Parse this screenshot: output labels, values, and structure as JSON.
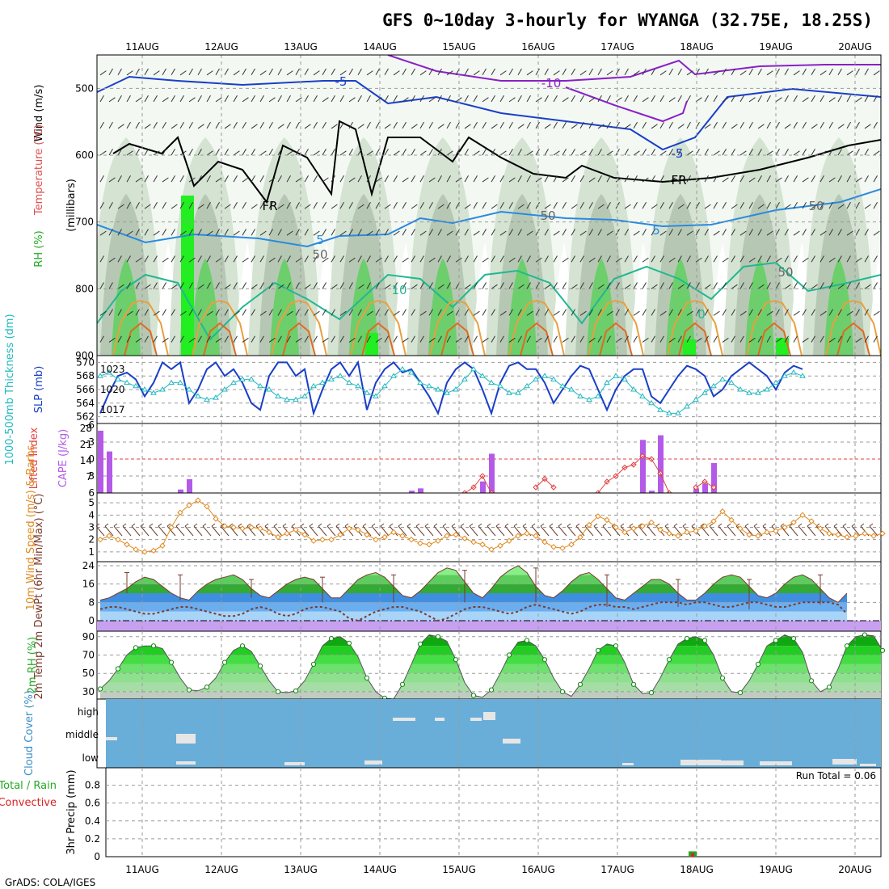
{
  "title": "GFS 0~10day 3-hourly for WYANGA (32.75E, 18.25S)",
  "credit": "GrADS: COLA/IGES",
  "chart_data": [
    {
      "panel": "upper-air",
      "type": "heatmap",
      "dates": [
        "11AUG",
        "12AUG",
        "13AUG",
        "14AUG",
        "15AUG",
        "16AUG",
        "17AUG",
        "18AUG",
        "19AUG",
        "20AUG"
      ],
      "y_label": "(millibars)",
      "y_ticks": [
        500,
        600,
        700,
        800,
        900
      ],
      "ylim": [
        900,
        450
      ],
      "legend": [
        {
          "text": "Wind (m/s)",
          "color": "#000000"
        },
        {
          "text": "Temperature (°C)",
          "color": "#e05050"
        },
        {
          "text": "RH (%)",
          "color": "#22aa22"
        }
      ],
      "contour_labels": [
        "-5",
        "-10",
        "-5",
        "-5",
        "5",
        "5",
        "10",
        "0",
        "0",
        "FR",
        "FR",
        "50",
        "50",
        "50",
        "50"
      ]
    },
    {
      "panel": "slp-thickness",
      "type": "line",
      "y_label_left": "1000-500mb Thickness (dm)",
      "y_label_right": "SLP (mb)",
      "left_ticks": [
        562,
        564,
        566,
        568,
        570
      ],
      "right_ticks": [
        1017,
        1020,
        1023
      ],
      "series": [
        {
          "name": "SLP (mb)",
          "color": "#1a3fc8",
          "values": [
            1016.5,
            1019.5,
            1022,
            1022.5,
            1021.5,
            1019,
            1021,
            1024,
            1023,
            1024,
            1018,
            1020,
            1023,
            1024,
            1022,
            1023,
            1021,
            1018,
            1017,
            1022,
            1024,
            1024,
            1022,
            1023,
            1016.5,
            1020,
            1023,
            1024,
            1022,
            1024,
            1017,
            1021,
            1023,
            1024,
            1022.5,
            1023,
            1021,
            1019,
            1016.5,
            1021,
            1023,
            1024,
            1023,
            1020,
            1016.5,
            1021,
            1023.5,
            1024,
            1023,
            1023,
            1021,
            1018,
            1020,
            1022,
            1023.5,
            1023,
            1020,
            1017,
            1020,
            1022,
            1023,
            1023,
            1019,
            1018,
            1020,
            1022,
            1023.5,
            1023,
            1022,
            1019,
            1020,
            1022,
            1023,
            1024,
            1023,
            1022,
            1020,
            1022.5,
            1023.5,
            1023
          ]
        },
        {
          "name": "Thickness (dm)",
          "color": "#20b8c0",
          "values": [
            568,
            568.5,
            567.5,
            567,
            566.5,
            566,
            565.5,
            566,
            567,
            567,
            566,
            565,
            564.5,
            564.8,
            566,
            567,
            567.5,
            567.5,
            566.5,
            566,
            565,
            564.5,
            564.5,
            565,
            566.5,
            567,
            567.5,
            568,
            567,
            566.5,
            565.5,
            565,
            566.5,
            568,
            569,
            568.5,
            567,
            566.5,
            566,
            565.5,
            566,
            567.5,
            569,
            568,
            567,
            566.5,
            565.5,
            565.5,
            566.5,
            567.5,
            568,
            567.5,
            566.5,
            566,
            565,
            564.5,
            565,
            567,
            568,
            567.5,
            566,
            565,
            564,
            563,
            562.5,
            562.5,
            563.5,
            564.5,
            565.5,
            566.5,
            567.5,
            567,
            566,
            565.5,
            565.5,
            566,
            567,
            568,
            568.5,
            568
          ]
        }
      ]
    },
    {
      "panel": "cape-lifted-index",
      "type": "bar",
      "y_label_left": "Lifted Index",
      "y_label_right": "CAPE (J/kg)",
      "left_ticks": [
        "-6",
        "-3",
        "0",
        "3",
        "6"
      ],
      "right_ticks": [
        "28",
        "21",
        "14",
        "7"
      ],
      "cape_bars": [
        {
          "i": 0,
          "value": 27
        },
        {
          "i": 1,
          "value": 18
        },
        {
          "i": 9,
          "value": 1.5
        },
        {
          "i": 10,
          "value": 6
        },
        {
          "i": 35,
          "value": 1
        },
        {
          "i": 36,
          "value": 2
        },
        {
          "i": 43,
          "value": 5
        },
        {
          "i": 44,
          "value": 17
        },
        {
          "i": 61,
          "value": 23
        },
        {
          "i": 62,
          "value": 1
        },
        {
          "i": 63,
          "value": 25
        },
        {
          "i": 67,
          "value": 2
        },
        {
          "i": 68,
          "value": 4
        },
        {
          "i": 69,
          "value": 13
        }
      ],
      "lifted_index": [
        {
          "i": 41,
          "value": 6
        },
        {
          "i": 42,
          "value": 5
        },
        {
          "i": 43,
          "value": 3
        },
        {
          "i": 44,
          "value": 6
        },
        {
          "i": 49,
          "value": 5
        },
        {
          "i": 50,
          "value": 3.5
        },
        {
          "i": 51,
          "value": 5
        },
        {
          "i": 56,
          "value": 6
        },
        {
          "i": 57,
          "value": 4
        },
        {
          "i": 58,
          "value": 3
        },
        {
          "i": 59,
          "value": 1.5
        },
        {
          "i": 60,
          "value": 1
        },
        {
          "i": 61,
          "value": -0.5
        },
        {
          "i": 62,
          "value": 0
        },
        {
          "i": 63,
          "value": 2.5
        },
        {
          "i": 64,
          "value": 6
        },
        {
          "i": 67,
          "value": 5
        },
        {
          "i": 68,
          "value": 4
        },
        {
          "i": 69,
          "value": 5
        }
      ]
    },
    {
      "panel": "wind",
      "type": "line",
      "y_label": "10m Wind Speed (m/s) & Barbs",
      "y_ticks": [
        1,
        2,
        3,
        4,
        5
      ],
      "series": [
        {
          "name": "10m Wind Speed (m/s)",
          "color": "#e08a20",
          "values": [
            2.0,
            2.3,
            2.0,
            1.6,
            1.2,
            1.0,
            1.1,
            1.5,
            3.0,
            4.2,
            4.8,
            5.2,
            4.7,
            3.7,
            3.1,
            3.0,
            2.9,
            3.0,
            2.9,
            2.6,
            2.2,
            2.5,
            2.8,
            2.4,
            1.9,
            2.0,
            2.0,
            2.4,
            2.9,
            2.8,
            2.4,
            2.0,
            2.2,
            2.6,
            2.3,
            2.0,
            1.7,
            1.6,
            1.9,
            2.3,
            2.4,
            2.1,
            1.8,
            1.6,
            1.2,
            1.5,
            1.9,
            2.3,
            2.5,
            2.3,
            1.8,
            1.4,
            1.3,
            1.6,
            2.2,
            3.2,
            3.9,
            3.6,
            3.0,
            2.6,
            2.9,
            3.1,
            3.4,
            2.8,
            2.5,
            2.3,
            2.6,
            2.7,
            3.1,
            3.5,
            4.3,
            3.6,
            2.9,
            2.4,
            2.3,
            2.6,
            2.7,
            3.0,
            3.4,
            4.0,
            3.5,
            2.9,
            2.5,
            2.4,
            2.2,
            2.3,
            2.5,
            2.3,
            2.5
          ]
        }
      ]
    },
    {
      "panel": "temperature",
      "type": "area",
      "y_label": "2m Temp 2m DewPt (6hr Min/Max) (°C)",
      "y_ticks": [
        0,
        8,
        16,
        24
      ],
      "series": [
        {
          "name": "2m Temp",
          "values": [
            9,
            10,
            12,
            14,
            17,
            19,
            18,
            15,
            12,
            10,
            9,
            13,
            16,
            18,
            19,
            20,
            18,
            14,
            11,
            10,
            13,
            16,
            18,
            19,
            18,
            14,
            10,
            10,
            14,
            18,
            20,
            21,
            19,
            15,
            11,
            10,
            13,
            17,
            21,
            23,
            22,
            17,
            12,
            10,
            14,
            19,
            22,
            24,
            21,
            15,
            11,
            10,
            13,
            17,
            20,
            21,
            18,
            14,
            10,
            9,
            12,
            15,
            18,
            18,
            16,
            12,
            9,
            9,
            12,
            16,
            19,
            20,
            19,
            15,
            11,
            10,
            12,
            16,
            19,
            20,
            18,
            14,
            10,
            8,
            12
          ]
        },
        {
          "name": "2m DewPt",
          "values": [
            5,
            6,
            6,
            5,
            4,
            3,
            3,
            4,
            5,
            6,
            6,
            5,
            4,
            3,
            2,
            2,
            3,
            5,
            6,
            5,
            3,
            2,
            3,
            5,
            6,
            6,
            5,
            4,
            1,
            0,
            2,
            4,
            5,
            6,
            6,
            5,
            4,
            2,
            0,
            1,
            3,
            5,
            6,
            6,
            5,
            4,
            3,
            4,
            6,
            7,
            6,
            5,
            4,
            3,
            4,
            6,
            7,
            7,
            6,
            6,
            5,
            6,
            7,
            8,
            8,
            8,
            7,
            8,
            8,
            7,
            6,
            6,
            7,
            8,
            8,
            7,
            6,
            6,
            7,
            8,
            8,
            8,
            8,
            7,
            3
          ]
        }
      ],
      "minmax_bars": [
        {
          "i": 3,
          "min": 12,
          "max": 21
        },
        {
          "i": 9,
          "min": 9,
          "max": 20
        },
        {
          "i": 17,
          "min": 10,
          "max": 18
        },
        {
          "i": 25,
          "min": 8,
          "max": 19
        },
        {
          "i": 33,
          "min": 8,
          "max": 20
        },
        {
          "i": 41,
          "min": 8,
          "max": 22
        },
        {
          "i": 49,
          "min": 8,
          "max": 23
        },
        {
          "i": 57,
          "min": 6,
          "max": 20
        },
        {
          "i": 65,
          "min": 6,
          "max": 18
        },
        {
          "i": 73,
          "min": 5,
          "max": 18
        },
        {
          "i": 81,
          "min": 7,
          "max": 20
        }
      ]
    },
    {
      "panel": "rh",
      "type": "area",
      "y_label": "2m RH (%)",
      "y_ticks": [
        30,
        50,
        70,
        90
      ],
      "series": [
        {
          "name": "2m RH",
          "values": [
            33,
            42,
            55,
            70,
            78,
            80,
            80,
            77,
            62,
            45,
            32,
            31,
            35,
            45,
            62,
            75,
            80,
            74,
            58,
            42,
            30,
            29,
            31,
            42,
            60,
            80,
            88,
            90,
            83,
            68,
            45,
            30,
            23,
            22,
            38,
            60,
            82,
            92,
            90,
            85,
            65,
            40,
            26,
            24,
            32,
            50,
            70,
            84,
            86,
            80,
            65,
            45,
            30,
            25,
            38,
            55,
            75,
            82,
            80,
            62,
            38,
            28,
            29,
            45,
            65,
            82,
            88,
            90,
            86,
            70,
            45,
            30,
            29,
            42,
            60,
            80,
            86,
            92,
            88,
            73,
            42,
            30,
            35,
            55,
            80,
            90,
            92,
            91,
            75
          ]
        }
      ]
    },
    {
      "panel": "cloud-cover",
      "type": "heatmap",
      "y_label": "Cloud Cover (%)",
      "y_ticks": [
        "high",
        "middle",
        "low"
      ]
    },
    {
      "panel": "precip",
      "type": "bar",
      "y_label": "3hr Precip (mm)",
      "legend": [
        {
          "text": "Total / Rain",
          "color": "#22aa22"
        },
        {
          "text": "Convective",
          "color": "#dd2222"
        }
      ],
      "annotation": "Run Total = 0.06",
      "y_ticks": [
        "0",
        "0.2",
        "0.4",
        "0.6",
        "0.8"
      ],
      "ylim": [
        0,
        0.95
      ],
      "values": [
        {
          "i": 66,
          "value": 0.06,
          "convective": 0.04
        }
      ]
    }
  ]
}
